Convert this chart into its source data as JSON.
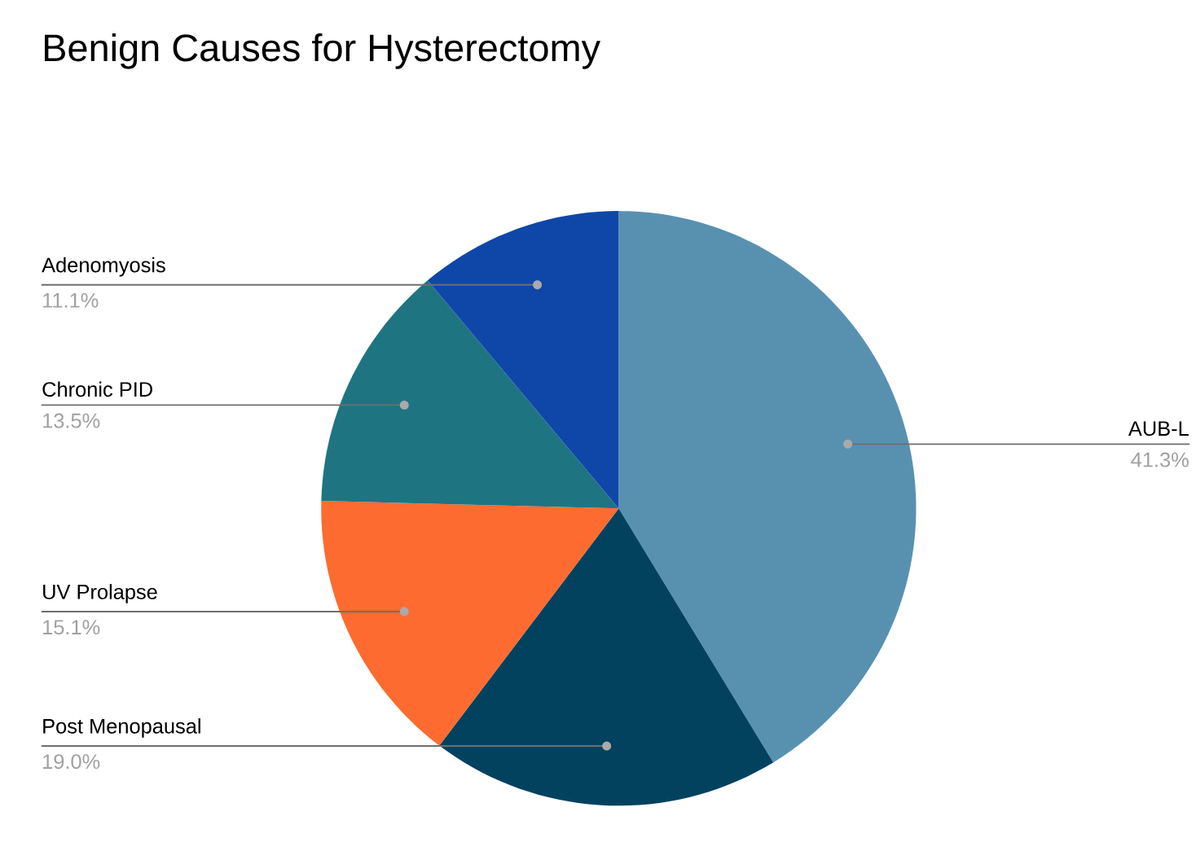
{
  "chart_data": {
    "type": "pie",
    "title": "Benign Causes for Hysterectomy",
    "categories": [
      "AUB-L",
      "Post Menopausal",
      "UV Prolapse",
      "Chronic PID",
      "Adenomyosis"
    ],
    "values": [
      41.3,
      19.0,
      15.1,
      13.5,
      11.1
    ],
    "colors": [
      "#5891b0",
      "#03425f",
      "#fd6b30",
      "#1f7482",
      "#0f47a8"
    ],
    "value_labels": [
      "41.3%",
      "19.0%",
      "15.1%",
      "13.5%",
      "11.1%"
    ]
  }
}
